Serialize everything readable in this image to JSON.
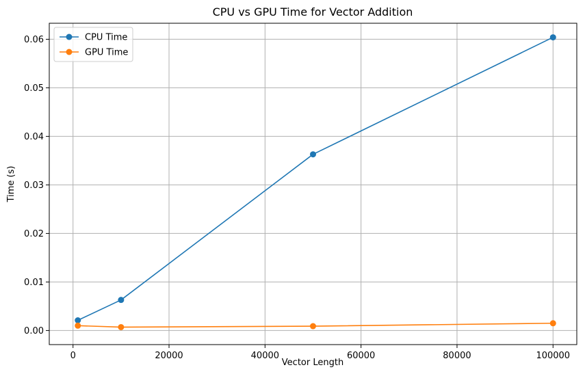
{
  "chart_data": {
    "type": "line",
    "title": "CPU vs GPU Time for Vector Addition",
    "xlabel": "Vector Length",
    "ylabel": "Time (s)",
    "xlim": [
      -4950,
      104950
    ],
    "ylim": [
      -0.0029,
      0.0633
    ],
    "xticks": [
      0,
      20000,
      40000,
      60000,
      80000,
      100000
    ],
    "xtick_labels": [
      "0",
      "20000",
      "40000",
      "60000",
      "80000",
      "100000"
    ],
    "yticks": [
      0.0,
      0.01,
      0.02,
      0.03,
      0.04,
      0.05,
      0.06
    ],
    "ytick_labels": [
      "0.00",
      "0.01",
      "0.02",
      "0.03",
      "0.04",
      "0.05",
      "0.06"
    ],
    "grid": true,
    "legend_position": "top-left",
    "series": [
      {
        "name": "CPU Time",
        "color": "#1f77b4",
        "marker": "circle",
        "x": [
          1000,
          10000,
          50000,
          100000
        ],
        "y": [
          0.0021,
          0.0063,
          0.0363,
          0.0604
        ]
      },
      {
        "name": "GPU Time",
        "color": "#ff7f0e",
        "marker": "circle",
        "x": [
          1000,
          10000,
          50000,
          100000
        ],
        "y": [
          0.001,
          0.0007,
          0.0009,
          0.0015
        ]
      }
    ]
  }
}
